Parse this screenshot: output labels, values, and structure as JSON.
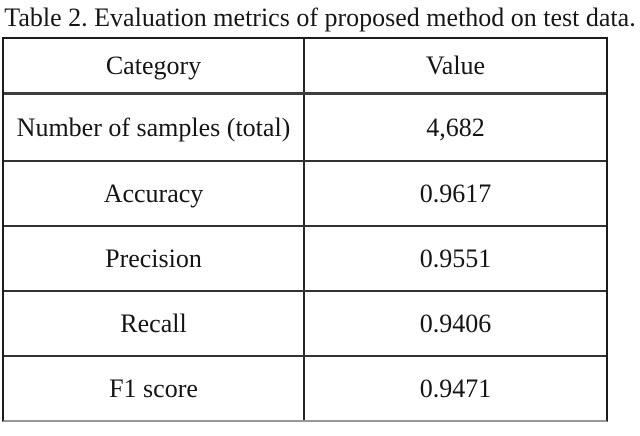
{
  "caption": "Table 2. Evaluation metrics of proposed method on test data.",
  "table": {
    "headers": {
      "category": "Category",
      "value": "Value"
    },
    "rows": [
      {
        "category": "Number of samples (total)",
        "value": "4,682"
      },
      {
        "category": "Accuracy",
        "value": "0.9617"
      },
      {
        "category": "Precision",
        "value": "0.9551"
      },
      {
        "category": "Recall",
        "value": "0.9406"
      },
      {
        "category": "F1 score",
        "value": "0.9471"
      }
    ]
  },
  "chart_data": {
    "type": "table",
    "title": "Table 2. Evaluation metrics of proposed method on test data.",
    "columns": [
      "Category",
      "Value"
    ],
    "records": [
      [
        "Number of samples (total)",
        "4,682"
      ],
      [
        "Accuracy",
        "0.9617"
      ],
      [
        "Precision",
        "0.9551"
      ],
      [
        "Recall",
        "0.9406"
      ],
      [
        "F1 score",
        "0.9471"
      ]
    ]
  },
  "colors": {
    "background": "#ffffff",
    "text": "#141414",
    "outer_border": "#1c1c1c",
    "header_separator": "#3e3e3e",
    "row_separator": "#323232",
    "bottom_border": "#979797"
  }
}
